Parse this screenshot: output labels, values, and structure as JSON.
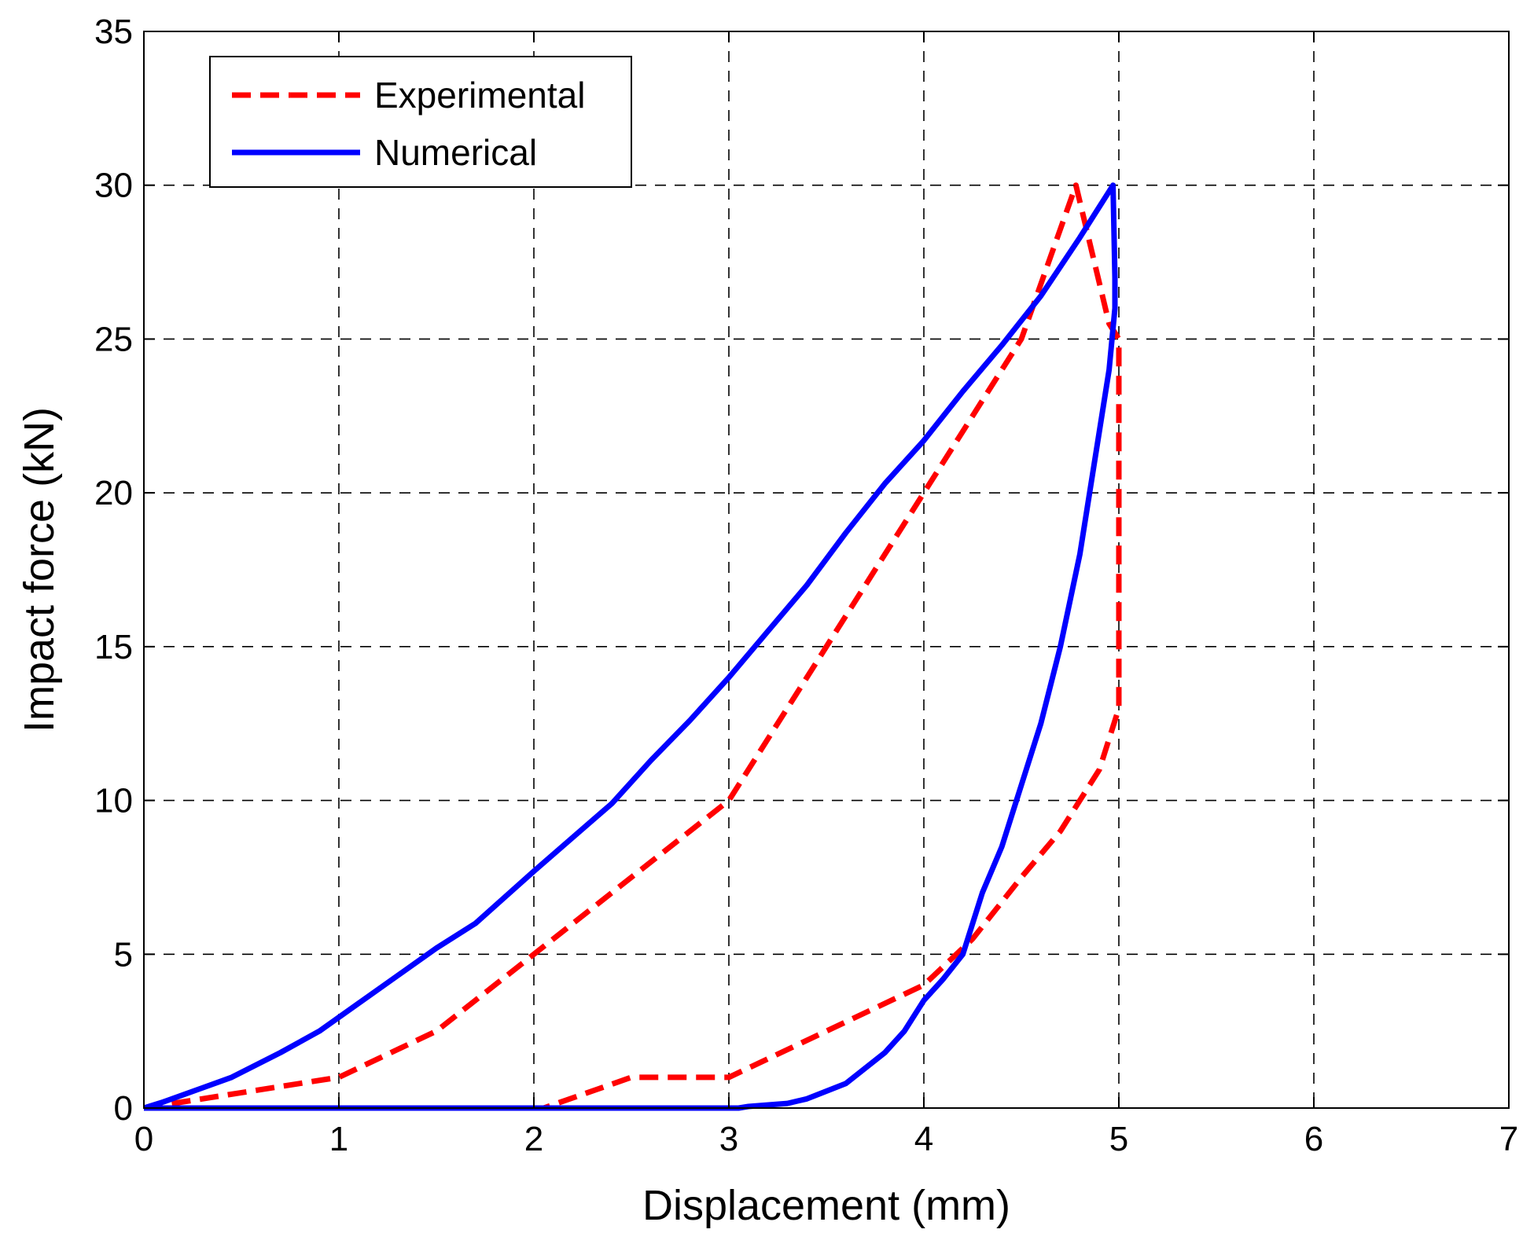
{
  "chart_data": {
    "type": "line",
    "title": "",
    "xlabel": "Displacement (mm)",
    "ylabel": "Impact force (kN)",
    "xlim": [
      0,
      7
    ],
    "ylim": [
      0,
      35
    ],
    "xticks": [
      0,
      1,
      2,
      3,
      4,
      5,
      6,
      7
    ],
    "yticks": [
      0,
      5,
      10,
      15,
      20,
      25,
      30,
      35
    ],
    "grid": true,
    "legend_position": "top-left",
    "series": [
      {
        "name": "Experimental",
        "color": "#ff0000",
        "style": "dashed",
        "x": [
          0,
          0.5,
          1,
          1.5,
          2,
          2.5,
          3,
          3.5,
          4,
          4.5,
          4.78,
          4.95,
          5.0,
          5.0,
          4.9,
          4.7,
          4.5,
          4.25,
          4.0,
          3.5,
          3.0,
          2.5,
          2.05
        ],
        "y": [
          0,
          0.5,
          1,
          2.5,
          5,
          7.5,
          10,
          15,
          20,
          25,
          30,
          25.5,
          25,
          13,
          11,
          9,
          7.5,
          5.5,
          4,
          2.5,
          1,
          1,
          0
        ]
      },
      {
        "name": "Numerical",
        "color": "#0000ff",
        "style": "solid",
        "x": [
          0,
          0.1,
          0.45,
          0.7,
          0.9,
          1.1,
          1.3,
          1.5,
          1.7,
          2.0,
          2.2,
          2.4,
          2.6,
          2.8,
          3.0,
          3.2,
          3.4,
          3.6,
          3.8,
          4.0,
          4.2,
          4.4,
          4.5,
          4.6,
          4.8,
          4.97,
          4.98,
          4.98,
          4.95,
          4.9,
          4.8,
          4.7,
          4.6,
          4.5,
          4.4,
          4.3,
          4.2,
          4.1,
          4.0,
          3.9,
          3.8,
          3.6,
          3.4,
          3.3,
          3.1,
          3.05,
          2.5,
          2.0,
          1.0,
          0.5,
          0.1,
          0
        ],
        "y": [
          0,
          0.2,
          1.0,
          1.8,
          2.5,
          3.4,
          4.3,
          5.2,
          6.0,
          7.7,
          8.8,
          9.9,
          11.3,
          12.6,
          14.0,
          15.5,
          17.0,
          18.7,
          20.3,
          21.7,
          23.3,
          24.8,
          25.6,
          26.4,
          28.3,
          30.0,
          27.0,
          26.0,
          24.0,
          22.0,
          18.0,
          15.0,
          12.5,
          10.5,
          8.5,
          7.0,
          5.0,
          4.2,
          3.5,
          2.5,
          1.8,
          0.8,
          0.3,
          0.15,
          0.05,
          0,
          0,
          0,
          0,
          0,
          0,
          0
        ]
      }
    ]
  }
}
